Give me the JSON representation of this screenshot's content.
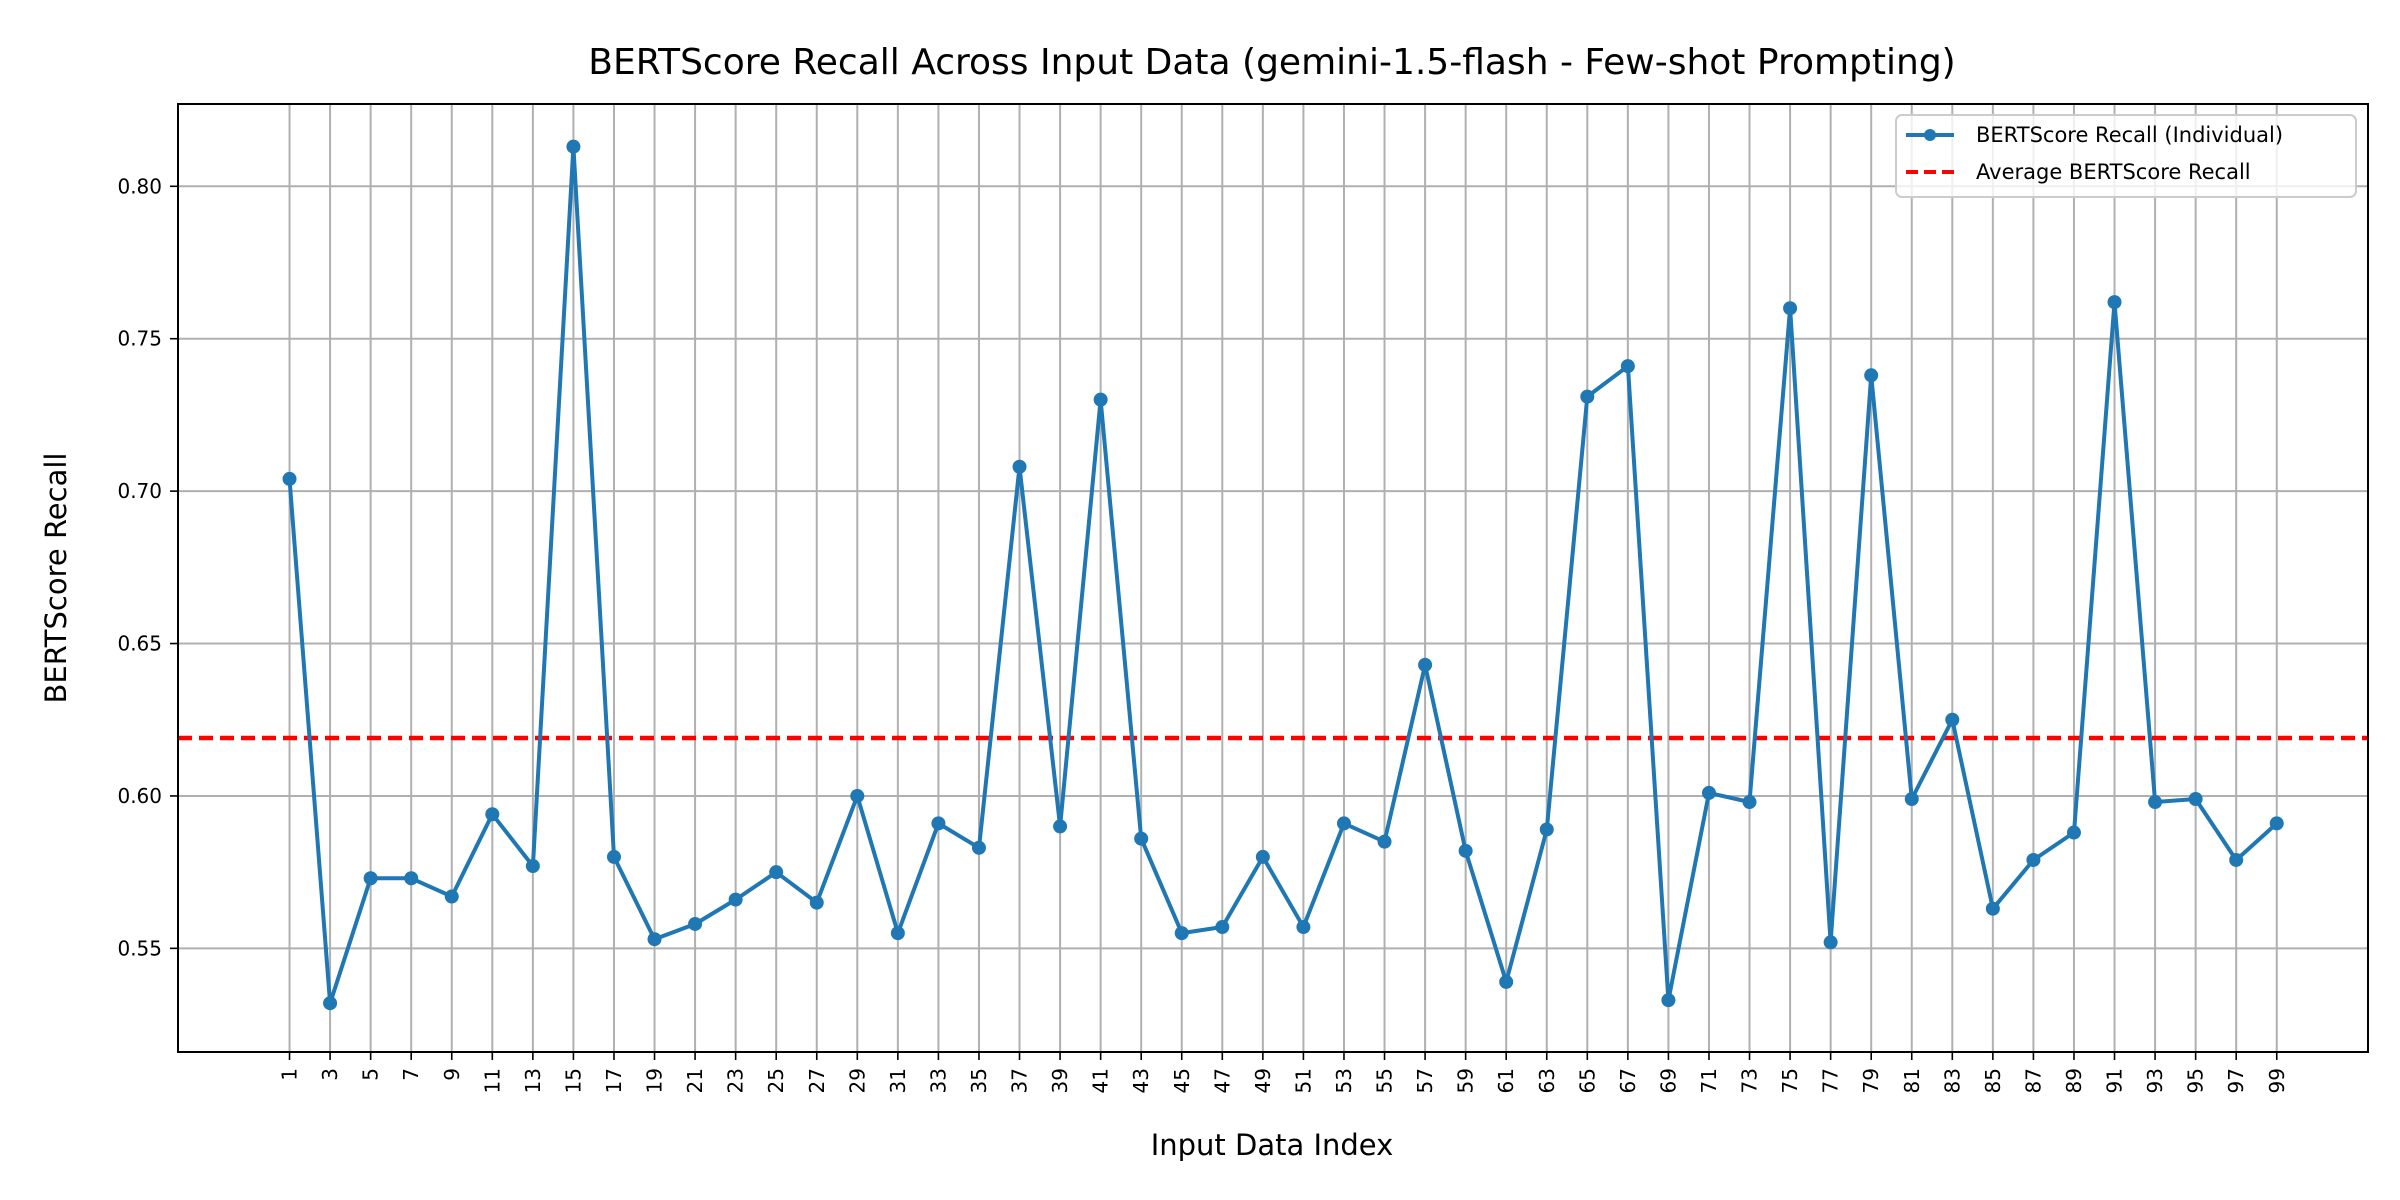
{
  "chart_data": {
    "type": "line",
    "title": "BERTScore Recall Across Input Data (gemini-1.5-flash - Few-shot Prompting)",
    "xlabel": "Input Data Index",
    "ylabel": "BERTScore Recall",
    "xlim": [
      -4.5,
      103.5
    ],
    "ylim": [
      0.516,
      0.827
    ],
    "x_ticks": [
      1,
      3,
      5,
      7,
      9,
      11,
      13,
      15,
      17,
      19,
      21,
      23,
      25,
      27,
      29,
      31,
      33,
      35,
      37,
      39,
      41,
      43,
      45,
      47,
      49,
      51,
      53,
      55,
      57,
      59,
      61,
      63,
      65,
      67,
      69,
      71,
      73,
      75,
      77,
      79,
      81,
      83,
      85,
      87,
      89,
      91,
      93,
      95,
      97,
      99
    ],
    "y_ticks": [
      "0.55",
      "0.60",
      "0.65",
      "0.70",
      "0.75",
      "0.80"
    ],
    "y_tick_values": [
      0.55,
      0.6,
      0.65,
      0.7,
      0.75,
      0.8
    ],
    "grid": true,
    "legend_position": "top-right",
    "series": [
      {
        "name": "BERTScore Recall (Individual)",
        "color": "#1f77b4",
        "style": "line-with-markers",
        "x": [
          1,
          3,
          5,
          7,
          9,
          11,
          13,
          15,
          17,
          19,
          21,
          23,
          25,
          27,
          29,
          31,
          33,
          35,
          37,
          39,
          41,
          43,
          45,
          47,
          49,
          51,
          53,
          55,
          57,
          59,
          61,
          63,
          65,
          67,
          69,
          71,
          73,
          75,
          77,
          79,
          81,
          83,
          85,
          87,
          89,
          91,
          93,
          95,
          97,
          99
        ],
        "values": [
          0.704,
          0.532,
          0.573,
          0.573,
          0.567,
          0.594,
          0.577,
          0.813,
          0.58,
          0.553,
          0.558,
          0.566,
          0.575,
          0.565,
          0.6,
          0.555,
          0.591,
          0.583,
          0.708,
          0.59,
          0.73,
          0.586,
          0.555,
          0.557,
          0.58,
          0.557,
          0.591,
          0.585,
          0.643,
          0.582,
          0.539,
          0.589,
          0.731,
          0.741,
          0.533,
          0.601,
          0.598,
          0.76,
          0.552,
          0.738,
          0.599,
          0.625,
          0.563,
          0.579,
          0.588,
          0.762,
          0.598,
          0.599,
          0.579,
          0.591
        ]
      },
      {
        "name": "Average BERTScore Recall",
        "color": "#ff0000",
        "style": "dashed-horizontal",
        "value": 0.619
      }
    ]
  }
}
